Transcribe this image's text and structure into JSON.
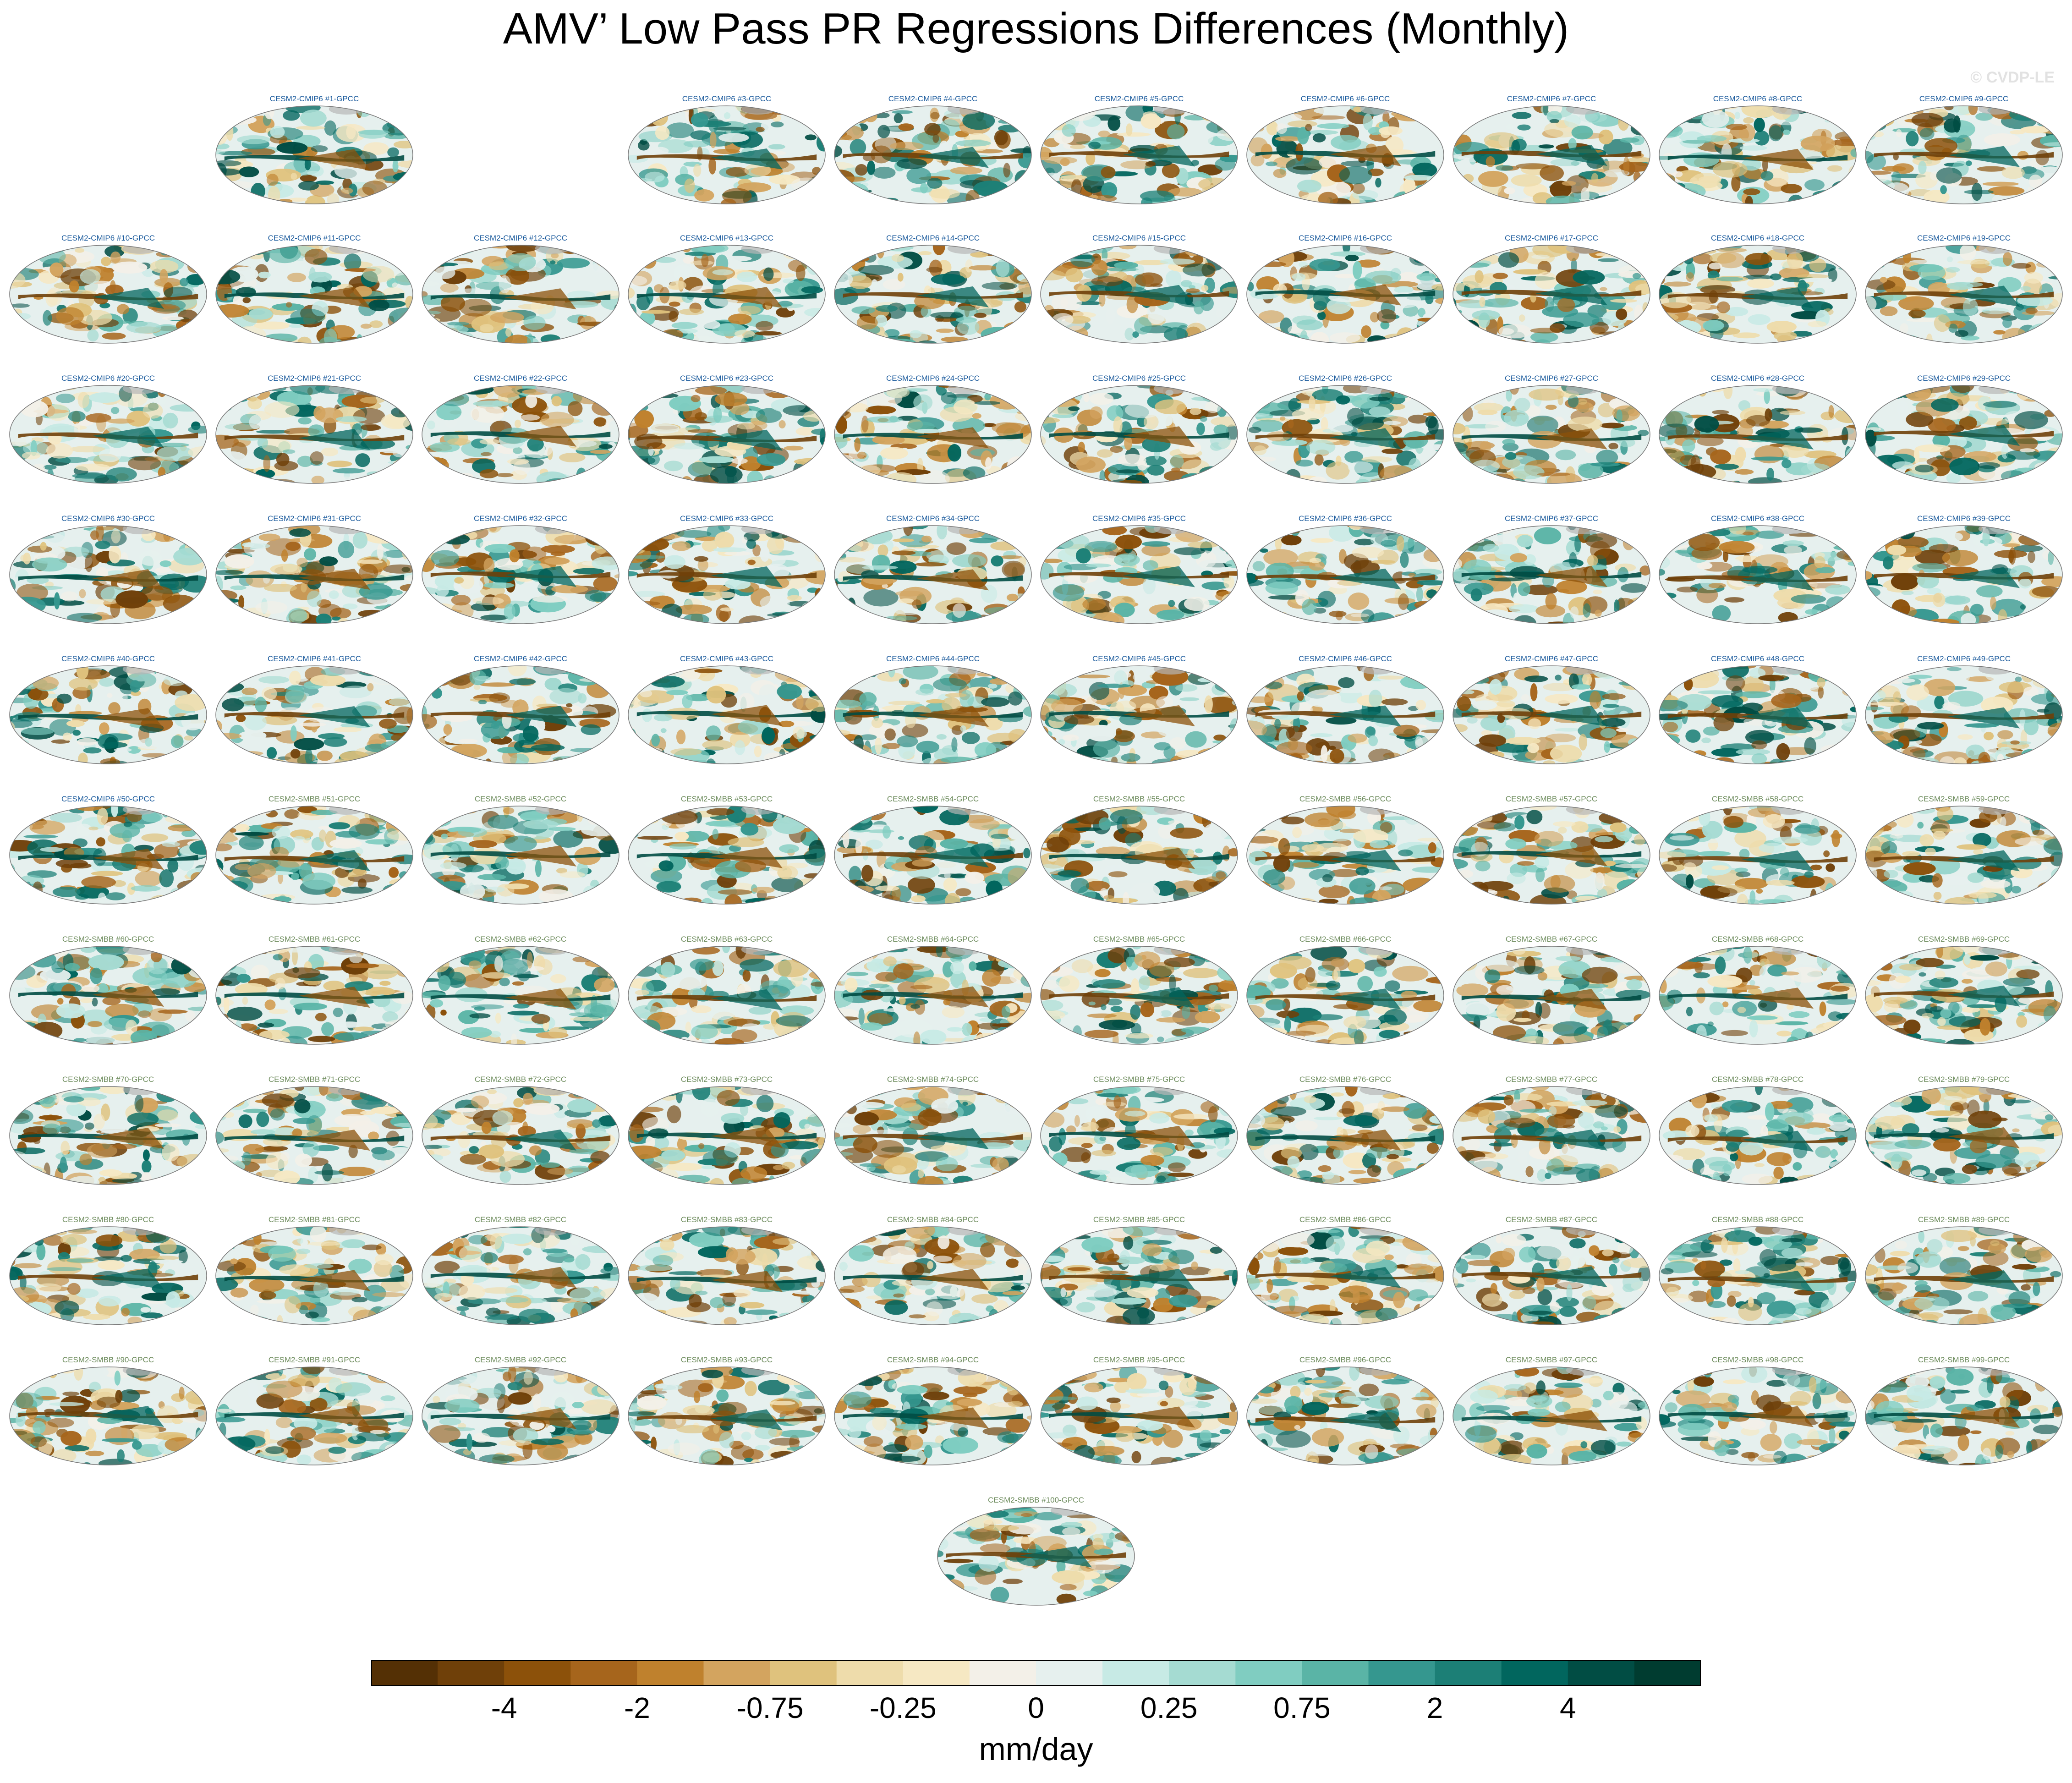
{
  "title": "AMV’ Low Pass PR Regressions Differences (Monthly)",
  "watermark": "© CVDP-LE",
  "chart_data": {
    "type": "heatmap",
    "title": "AMV’ Low Pass PR Regressions Differences (Monthly)",
    "description_kind": "panel grid of global map projections",
    "panels": [
      {
        "label": "CESM2-CMIP6 #1-GPCC",
        "group": "CESM2-CMIP6"
      },
      {
        "label": "CESM2-CMIP6 #3-GPCC",
        "group": "CESM2-CMIP6"
      },
      {
        "label": "CESM2-CMIP6 #4-GPCC",
        "group": "CESM2-CMIP6"
      },
      {
        "label": "CESM2-CMIP6 #5-GPCC",
        "group": "CESM2-CMIP6"
      },
      {
        "label": "CESM2-CMIP6 #6-GPCC",
        "group": "CESM2-CMIP6"
      },
      {
        "label": "CESM2-CMIP6 #7-GPCC",
        "group": "CESM2-CMIP6"
      },
      {
        "label": "CESM2-CMIP6 #8-GPCC",
        "group": "CESM2-CMIP6"
      },
      {
        "label": "CESM2-CMIP6 #9-GPCC",
        "group": "CESM2-CMIP6"
      },
      {
        "label": "CESM2-CMIP6 #10-GPCC",
        "group": "CESM2-CMIP6"
      },
      {
        "label": "CESM2-CMIP6 #11-GPCC",
        "group": "CESM2-CMIP6"
      },
      {
        "label": "CESM2-CMIP6 #12-GPCC",
        "group": "CESM2-CMIP6"
      },
      {
        "label": "CESM2-CMIP6 #13-GPCC",
        "group": "CESM2-CMIP6"
      },
      {
        "label": "CESM2-CMIP6 #14-GPCC",
        "group": "CESM2-CMIP6"
      },
      {
        "label": "CESM2-CMIP6 #15-GPCC",
        "group": "CESM2-CMIP6"
      },
      {
        "label": "CESM2-CMIP6 #16-GPCC",
        "group": "CESM2-CMIP6"
      },
      {
        "label": "CESM2-CMIP6 #17-GPCC",
        "group": "CESM2-CMIP6"
      },
      {
        "label": "CESM2-CMIP6 #18-GPCC",
        "group": "CESM2-CMIP6"
      },
      {
        "label": "CESM2-CMIP6 #19-GPCC",
        "group": "CESM2-CMIP6"
      },
      {
        "label": "CESM2-CMIP6 #20-GPCC",
        "group": "CESM2-CMIP6"
      },
      {
        "label": "CESM2-CMIP6 #21-GPCC",
        "group": "CESM2-CMIP6"
      },
      {
        "label": "CESM2-CMIP6 #22-GPCC",
        "group": "CESM2-CMIP6"
      },
      {
        "label": "CESM2-CMIP6 #23-GPCC",
        "group": "CESM2-CMIP6"
      },
      {
        "label": "CESM2-CMIP6 #24-GPCC",
        "group": "CESM2-CMIP6"
      },
      {
        "label": "CESM2-CMIP6 #25-GPCC",
        "group": "CESM2-CMIP6"
      },
      {
        "label": "CESM2-CMIP6 #26-GPCC",
        "group": "CESM2-CMIP6"
      },
      {
        "label": "CESM2-CMIP6 #27-GPCC",
        "group": "CESM2-CMIP6"
      },
      {
        "label": "CESM2-CMIP6 #28-GPCC",
        "group": "CESM2-CMIP6"
      },
      {
        "label": "CESM2-CMIP6 #29-GPCC",
        "group": "CESM2-CMIP6"
      },
      {
        "label": "CESM2-CMIP6 #30-GPCC",
        "group": "CESM2-CMIP6"
      },
      {
        "label": "CESM2-CMIP6 #31-GPCC",
        "group": "CESM2-CMIP6"
      },
      {
        "label": "CESM2-CMIP6 #32-GPCC",
        "group": "CESM2-CMIP6"
      },
      {
        "label": "CESM2-CMIP6 #33-GPCC",
        "group": "CESM2-CMIP6"
      },
      {
        "label": "CESM2-CMIP6 #34-GPCC",
        "group": "CESM2-CMIP6"
      },
      {
        "label": "CESM2-CMIP6 #35-GPCC",
        "group": "CESM2-CMIP6"
      },
      {
        "label": "CESM2-CMIP6 #36-GPCC",
        "group": "CESM2-CMIP6"
      },
      {
        "label": "CESM2-CMIP6 #37-GPCC",
        "group": "CESM2-CMIP6"
      },
      {
        "label": "CESM2-CMIP6 #38-GPCC",
        "group": "CESM2-CMIP6"
      },
      {
        "label": "CESM2-CMIP6 #39-GPCC",
        "group": "CESM2-CMIP6"
      },
      {
        "label": "CESM2-CMIP6 #40-GPCC",
        "group": "CESM2-CMIP6"
      },
      {
        "label": "CESM2-CMIP6 #41-GPCC",
        "group": "CESM2-CMIP6"
      },
      {
        "label": "CESM2-CMIP6 #42-GPCC",
        "group": "CESM2-CMIP6"
      },
      {
        "label": "CESM2-CMIP6 #43-GPCC",
        "group": "CESM2-CMIP6"
      },
      {
        "label": "CESM2-CMIP6 #44-GPCC",
        "group": "CESM2-CMIP6"
      },
      {
        "label": "CESM2-CMIP6 #45-GPCC",
        "group": "CESM2-CMIP6"
      },
      {
        "label": "CESM2-CMIP6 #46-GPCC",
        "group": "CESM2-CMIP6"
      },
      {
        "label": "CESM2-CMIP6 #47-GPCC",
        "group": "CESM2-CMIP6"
      },
      {
        "label": "CESM2-CMIP6 #48-GPCC",
        "group": "CESM2-CMIP6"
      },
      {
        "label": "CESM2-CMIP6 #49-GPCC",
        "group": "CESM2-CMIP6"
      },
      {
        "label": "CESM2-CMIP6 #50-GPCC",
        "group": "CESM2-CMIP6"
      },
      {
        "label": "CESM2-SMBB #51-GPCC",
        "group": "CESM2-SMBB"
      },
      {
        "label": "CESM2-SMBB #52-GPCC",
        "group": "CESM2-SMBB"
      },
      {
        "label": "CESM2-SMBB #53-GPCC",
        "group": "CESM2-SMBB"
      },
      {
        "label": "CESM2-SMBB #54-GPCC",
        "group": "CESM2-SMBB"
      },
      {
        "label": "CESM2-SMBB #55-GPCC",
        "group": "CESM2-SMBB"
      },
      {
        "label": "CESM2-SMBB #56-GPCC",
        "group": "CESM2-SMBB"
      },
      {
        "label": "CESM2-SMBB #57-GPCC",
        "group": "CESM2-SMBB"
      },
      {
        "label": "CESM2-SMBB #58-GPCC",
        "group": "CESM2-SMBB"
      },
      {
        "label": "CESM2-SMBB #59-GPCC",
        "group": "CESM2-SMBB"
      },
      {
        "label": "CESM2-SMBB #60-GPCC",
        "group": "CESM2-SMBB"
      },
      {
        "label": "CESM2-SMBB #61-GPCC",
        "group": "CESM2-SMBB"
      },
      {
        "label": "CESM2-SMBB #62-GPCC",
        "group": "CESM2-SMBB"
      },
      {
        "label": "CESM2-SMBB #63-GPCC",
        "group": "CESM2-SMBB"
      },
      {
        "label": "CESM2-SMBB #64-GPCC",
        "group": "CESM2-SMBB"
      },
      {
        "label": "CESM2-SMBB #65-GPCC",
        "group": "CESM2-SMBB"
      },
      {
        "label": "CESM2-SMBB #66-GPCC",
        "group": "CESM2-SMBB"
      },
      {
        "label": "CESM2-SMBB #67-GPCC",
        "group": "CESM2-SMBB"
      },
      {
        "label": "CESM2-SMBB #68-GPCC",
        "group": "CESM2-SMBB"
      },
      {
        "label": "CESM2-SMBB #69-GPCC",
        "group": "CESM2-SMBB"
      },
      {
        "label": "CESM2-SMBB #70-GPCC",
        "group": "CESM2-SMBB"
      },
      {
        "label": "CESM2-SMBB #71-GPCC",
        "group": "CESM2-SMBB"
      },
      {
        "label": "CESM2-SMBB #72-GPCC",
        "group": "CESM2-SMBB"
      },
      {
        "label": "CESM2-SMBB #73-GPCC",
        "group": "CESM2-SMBB"
      },
      {
        "label": "CESM2-SMBB #74-GPCC",
        "group": "CESM2-SMBB"
      },
      {
        "label": "CESM2-SMBB #75-GPCC",
        "group": "CESM2-SMBB"
      },
      {
        "label": "CESM2-SMBB #76-GPCC",
        "group": "CESM2-SMBB"
      },
      {
        "label": "CESM2-SMBB #77-GPCC",
        "group": "CESM2-SMBB"
      },
      {
        "label": "CESM2-SMBB #78-GPCC",
        "group": "CESM2-SMBB"
      },
      {
        "label": "CESM2-SMBB #79-GPCC",
        "group": "CESM2-SMBB"
      },
      {
        "label": "CESM2-SMBB #80-GPCC",
        "group": "CESM2-SMBB"
      },
      {
        "label": "CESM2-SMBB #81-GPCC",
        "group": "CESM2-SMBB"
      },
      {
        "label": "CESM2-SMBB #82-GPCC",
        "group": "CESM2-SMBB"
      },
      {
        "label": "CESM2-SMBB #83-GPCC",
        "group": "CESM2-SMBB"
      },
      {
        "label": "CESM2-SMBB #84-GPCC",
        "group": "CESM2-SMBB"
      },
      {
        "label": "CESM2-SMBB #85-GPCC",
        "group": "CESM2-SMBB"
      },
      {
        "label": "CESM2-SMBB #86-GPCC",
        "group": "CESM2-SMBB"
      },
      {
        "label": "CESM2-SMBB #87-GPCC",
        "group": "CESM2-SMBB"
      },
      {
        "label": "CESM2-SMBB #88-GPCC",
        "group": "CESM2-SMBB"
      },
      {
        "label": "CESM2-SMBB #89-GPCC",
        "group": "CESM2-SMBB"
      },
      {
        "label": "CESM2-SMBB #90-GPCC",
        "group": "CESM2-SMBB"
      },
      {
        "label": "CESM2-SMBB #91-GPCC",
        "group": "CESM2-SMBB"
      },
      {
        "label": "CESM2-SMBB #92-GPCC",
        "group": "CESM2-SMBB"
      },
      {
        "label": "CESM2-SMBB #93-GPCC",
        "group": "CESM2-SMBB"
      },
      {
        "label": "CESM2-SMBB #94-GPCC",
        "group": "CESM2-SMBB"
      },
      {
        "label": "CESM2-SMBB #95-GPCC",
        "group": "CESM2-SMBB"
      },
      {
        "label": "CESM2-SMBB #96-GPCC",
        "group": "CESM2-SMBB"
      },
      {
        "label": "CESM2-SMBB #97-GPCC",
        "group": "CESM2-SMBB"
      },
      {
        "label": "CESM2-SMBB #98-GPCC",
        "group": "CESM2-SMBB"
      },
      {
        "label": "CESM2-SMBB #99-GPCC",
        "group": "CESM2-SMBB"
      },
      {
        "label": "CESM2-SMBB #100-GPCC",
        "group": "CESM2-SMBB"
      }
    ],
    "colorbar": {
      "units": "mm/day",
      "tick_labels": [
        "-4",
        "-2",
        "-0.75",
        "-0.25",
        "0",
        "0.25",
        "0.75",
        "2",
        "4"
      ],
      "colors": [
        "#543005",
        "#6f4009",
        "#8c510a",
        "#a6651c",
        "#bf812d",
        "#d3a45f",
        "#dfc27d",
        "#eedcab",
        "#f6e8c3",
        "#f3f0e8",
        "#e6f0ee",
        "#c7eae5",
        "#a5dbd2",
        "#80cdc1",
        "#5ab4a6",
        "#35978f",
        "#1c7f76",
        "#01665e",
        "#014d44",
        "#003c30"
      ]
    }
  },
  "colors": {
    "cmip6_label": "#1a5a9c",
    "smbb_label": "#6b8a5a",
    "land": "#b7b7b7"
  }
}
